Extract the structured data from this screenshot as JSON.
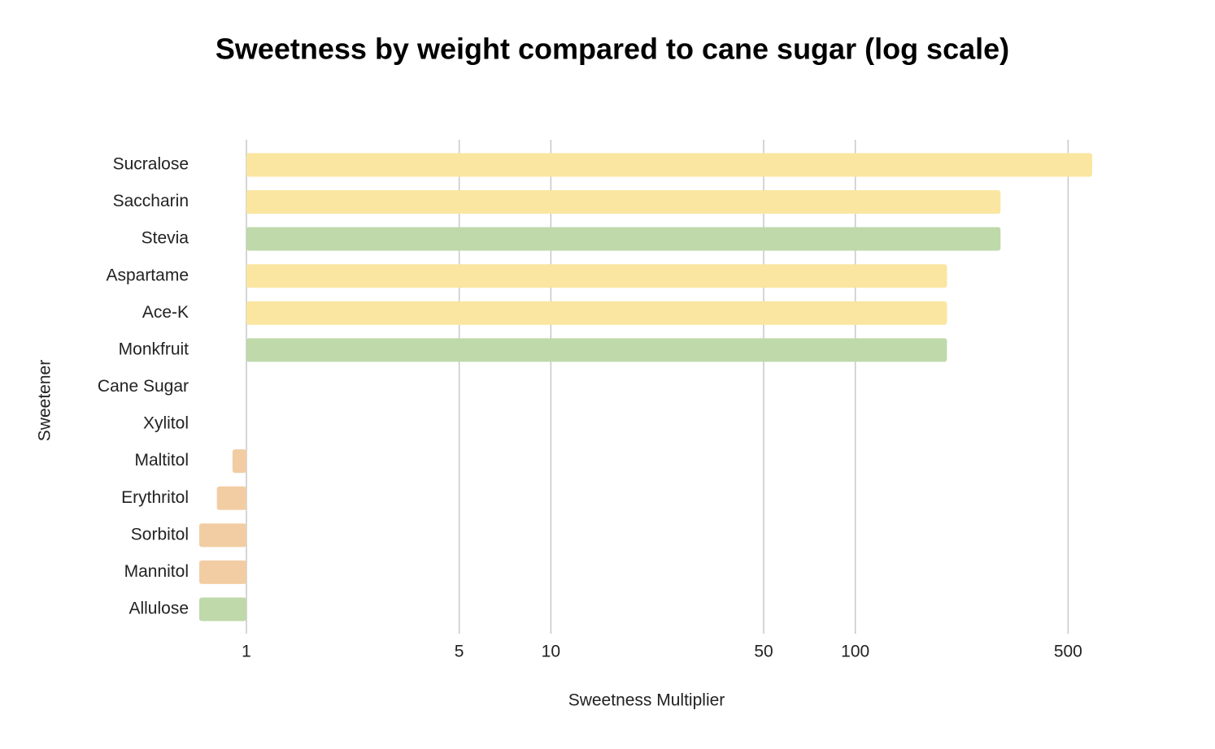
{
  "chart_data": {
    "type": "bar",
    "orientation": "horizontal",
    "title": "Sweetness by weight compared to cane sugar (log scale)",
    "x_label": "Sweetness Multiplier",
    "y_label": "Sweetener",
    "categories": [
      "Sucralose",
      "Saccharin",
      "Stevia",
      "Aspartame",
      "Ace-K",
      "Monkfruit",
      "Cane Sugar",
      "Xylitol",
      "Maltitol",
      "Erythritol",
      "Sorbitol",
      "Mannitol",
      "Allulose"
    ],
    "values": [
      600,
      300,
      300,
      200,
      200,
      200,
      1,
      1,
      0.9,
      0.8,
      0.7,
      0.7,
      0.7
    ],
    "colors": [
      "#fae6a0",
      "#fae6a0",
      "#bfd9ab",
      "#fae6a0",
      "#fae6a0",
      "#bfd9ab",
      "#fae6a0",
      "#f2cda3",
      "#f2cda3",
      "#f2cda3",
      "#f2cda3",
      "#f2cda3",
      "#bfd9ab"
    ],
    "base": 1,
    "xlim": [
      0.7,
      600
    ],
    "xticks": [
      1,
      5,
      10,
      50,
      100,
      500
    ],
    "log_scale": true,
    "grid": true
  }
}
